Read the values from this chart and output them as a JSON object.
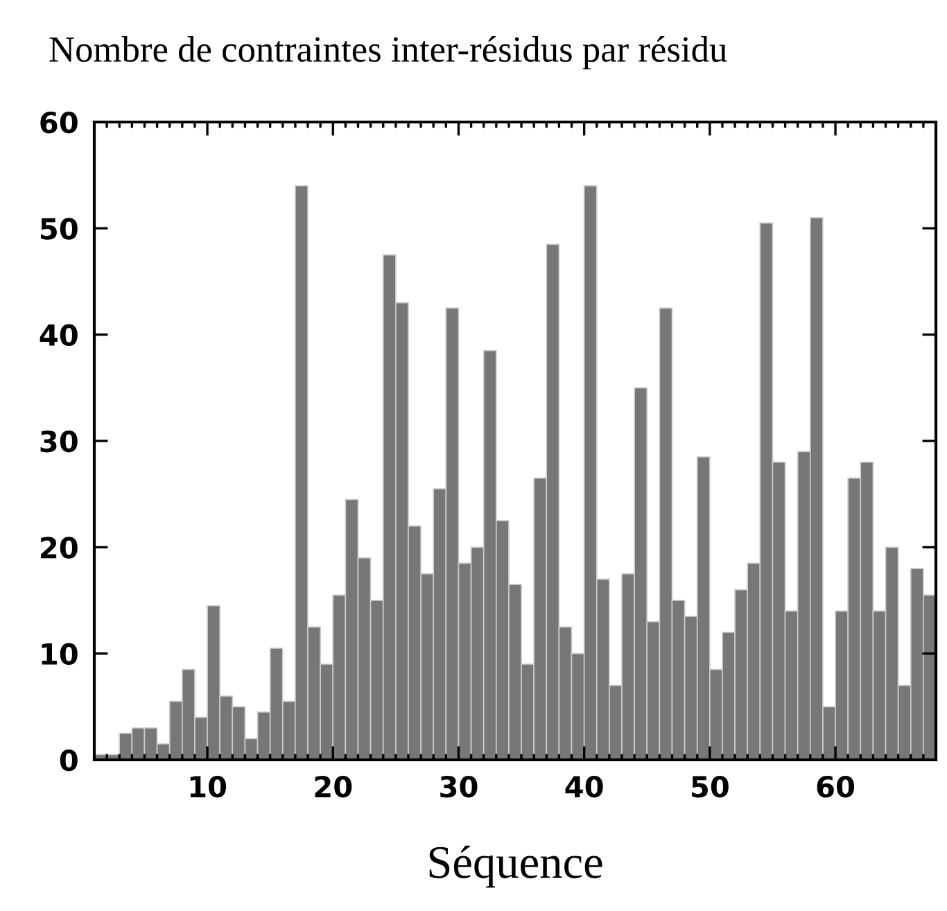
{
  "chart_data": {
    "type": "histogram",
    "title": "Nombre de contraintes inter-résidus par résidu",
    "xlabel": "Séquence",
    "bins": [
      1,
      2,
      3,
      4,
      5,
      6,
      7,
      8,
      9,
      10,
      11,
      12,
      13,
      14,
      15,
      16,
      17,
      18,
      19,
      20,
      21,
      22,
      23,
      24,
      25,
      26,
      27,
      28,
      29,
      30,
      31,
      32,
      33,
      34,
      35,
      36,
      37,
      38,
      39,
      40,
      41,
      42,
      43,
      44,
      45,
      46,
      47,
      48,
      49,
      50,
      51,
      52,
      53,
      54,
      55,
      56,
      57,
      58,
      59,
      60,
      61,
      62,
      63,
      64,
      65,
      66,
      67,
      68
    ],
    "values": [
      0.5,
      0.5,
      2.5,
      3,
      3,
      1.5,
      5.5,
      8.5,
      4,
      14.5,
      6,
      5,
      2,
      4.5,
      10.5,
      5.5,
      54,
      12.5,
      9,
      15.5,
      24.5,
      19,
      15,
      47.5,
      43,
      22,
      17.5,
      25.5,
      42.5,
      18.5,
      20,
      38.5,
      22.5,
      16.5,
      9,
      26.5,
      48.5,
      12.5,
      10,
      54,
      17,
      7,
      17.5,
      35,
      13,
      42.5,
      15,
      13.5,
      28.5,
      8.5,
      12,
      16,
      18.5,
      50.5,
      28,
      14,
      29,
      51,
      5,
      14,
      26.5,
      28,
      14,
      20,
      7,
      18,
      15.5
    ],
    "color": "#777777",
    "xlim": [
      1,
      68
    ],
    "ylim": [
      0,
      60
    ],
    "xticks": [
      10,
      20,
      30,
      40,
      50,
      60
    ],
    "yticks": [
      0,
      10,
      20,
      30,
      40,
      50,
      60
    ]
  }
}
